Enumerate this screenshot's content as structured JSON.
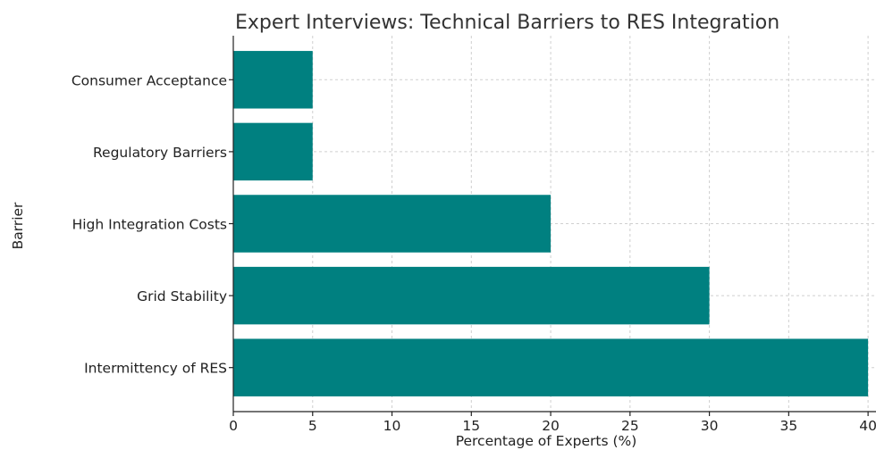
{
  "chart_data": {
    "type": "bar",
    "orientation": "horizontal",
    "title": "Expert Interviews: Technical Barriers to RES Integration",
    "xlabel": "Percentage of Experts (%)",
    "ylabel": "Barrier",
    "categories": [
      "Intermittency of RES",
      "Grid Stability",
      "High Integration Costs",
      "Regulatory Barriers",
      "Consumer Acceptance"
    ],
    "values": [
      40,
      30,
      20,
      5,
      5
    ],
    "xlim": [
      0,
      40.5
    ],
    "xticks": [
      0,
      5,
      10,
      15,
      20,
      25,
      30,
      35,
      40
    ],
    "grid": true,
    "bar_color": "#008080"
  }
}
